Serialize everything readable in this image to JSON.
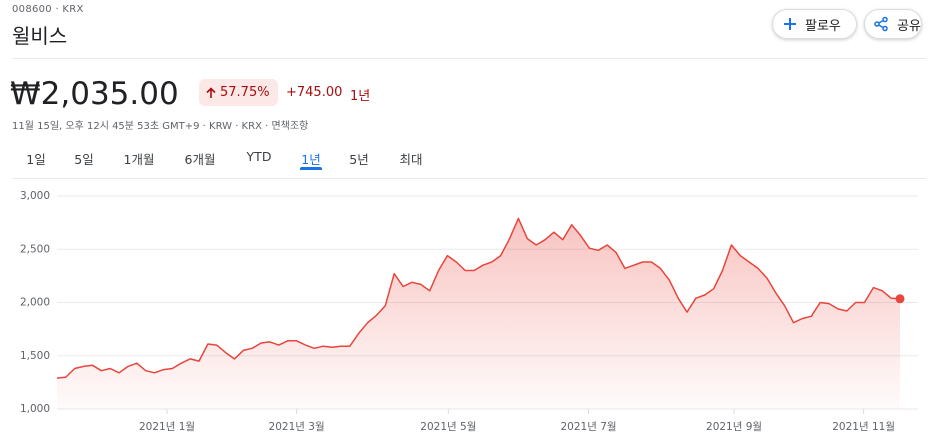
{
  "header": {
    "ticker": "008600 · KRX",
    "name": "윌비스",
    "follow": "팔로우",
    "share": "공유"
  },
  "quote": {
    "price": "₩2,035.00",
    "change_pct": "57.75%",
    "change": "+745.00",
    "period": "1년",
    "meta": "11월 15일, 오후 12시 45분 53초 GMT+9 · KRW · KRX ·",
    "disclaimer": "면책조항"
  },
  "tabs": {
    "items": [
      "1일",
      "5일",
      "1개월",
      "6개월",
      "YTD",
      "1년",
      "5년",
      "최대"
    ],
    "selected": 5
  },
  "chart_data": {
    "type": "line",
    "color": "#e8453c",
    "grid": true,
    "values": [
      1290,
      1300,
      1380,
      1400,
      1410,
      1360,
      1380,
      1340,
      1400,
      1430,
      1360,
      1340,
      1370,
      1380,
      1430,
      1470,
      1450,
      1610,
      1600,
      1530,
      1470,
      1550,
      1570,
      1620,
      1630,
      1600,
      1640,
      1640,
      1600,
      1570,
      1590,
      1580,
      1590,
      1590,
      1710,
      1810,
      1880,
      1970,
      2270,
      2150,
      2190,
      2170,
      2110,
      2300,
      2440,
      2380,
      2300,
      2300,
      2350,
      2380,
      2440,
      2600,
      2790,
      2600,
      2540,
      2590,
      2660,
      2590,
      2730,
      2630,
      2510,
      2490,
      2540,
      2470,
      2320,
      2350,
      2380,
      2380,
      2320,
      2210,
      2040,
      1910,
      2040,
      2070,
      2130,
      2300,
      2540,
      2440,
      2380,
      2320,
      2230,
      2090,
      1970,
      1810,
      1850,
      1870,
      2000,
      1990,
      1940,
      1920,
      2000,
      2000,
      2140,
      2110,
      2040,
      2035
    ],
    "ylim": [
      1000,
      3000
    ],
    "yticks": [
      {
        "value": 1000,
        "label": "1,000"
      },
      {
        "value": 1500,
        "label": "1,500"
      },
      {
        "value": 2000,
        "label": "2,000"
      },
      {
        "value": 2500,
        "label": "2,500"
      },
      {
        "value": 3000,
        "label": "3,000"
      }
    ],
    "xticks": [
      {
        "value": 12.4,
        "label": "2021년 1월"
      },
      {
        "value": 27,
        "label": "2021년 3월"
      },
      {
        "value": 44.1,
        "label": "2021년 5월"
      },
      {
        "value": 59.9,
        "label": "2021년 7월"
      },
      {
        "value": 76.3,
        "label": "2021년 9월"
      },
      {
        "value": 90.9,
        "label": "2021년 11월"
      }
    ]
  }
}
